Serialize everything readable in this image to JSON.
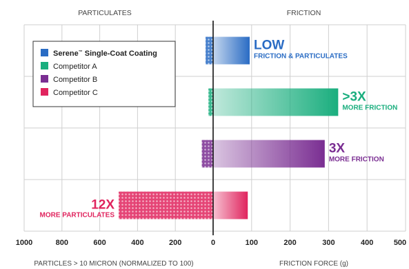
{
  "chart_data": {
    "type": "bar",
    "orientation": "horizontal",
    "layout": "diverging",
    "panels": [
      {
        "name": "left",
        "title": "PARTICULATES",
        "xlabel": "PARTICLES > 10 MICRON (NORMALIZED TO 100)",
        "xlim": [
          0,
          1000
        ],
        "direction": "reversed"
      },
      {
        "name": "right",
        "title": "FRICTION",
        "xlabel": "FRICTION FORCE (g)",
        "xlim": [
          0,
          500
        ]
      }
    ],
    "ticks": {
      "left": [
        "1000",
        "800",
        "600",
        "400",
        "200"
      ],
      "left_values": [
        1000,
        800,
        600,
        400,
        200
      ],
      "center": "0",
      "right": [
        "100",
        "200",
        "300",
        "400",
        "500"
      ],
      "right_values": [
        100,
        200,
        300,
        400,
        500
      ]
    },
    "grid": true,
    "legend_position": "top-left",
    "categories": [
      "Serene™ Single-Coat Coating",
      "Competitor A",
      "Competitor B",
      "Competitor C"
    ],
    "series": [
      {
        "name": "Serene™ Single-Coat Coating",
        "legend_main": "Serene",
        "legend_tm": "™",
        "legend_rest": " Single-Coat Coating",
        "particulates": 40,
        "friction": 95,
        "color": "#2a6cc4",
        "label_big": "LOW",
        "label_small": "FRICTION & PARTICULATES",
        "label_side": "right"
      },
      {
        "name": "Competitor A",
        "particulates": 25,
        "friction": 325,
        "color": "#1aae7e",
        "label_big": ">3X",
        "label_small": "MORE FRICTION",
        "label_side": "right"
      },
      {
        "name": "Competitor B",
        "particulates": 60,
        "friction": 290,
        "color": "#7a2e92",
        "label_big": "3X",
        "label_small": "MORE FRICTION",
        "label_side": "right"
      },
      {
        "name": "Competitor C",
        "particulates": 500,
        "friction": 90,
        "color": "#e0245e",
        "label_big": "12X",
        "label_small": "MORE PARTICULATES",
        "label_side": "left"
      }
    ]
  }
}
